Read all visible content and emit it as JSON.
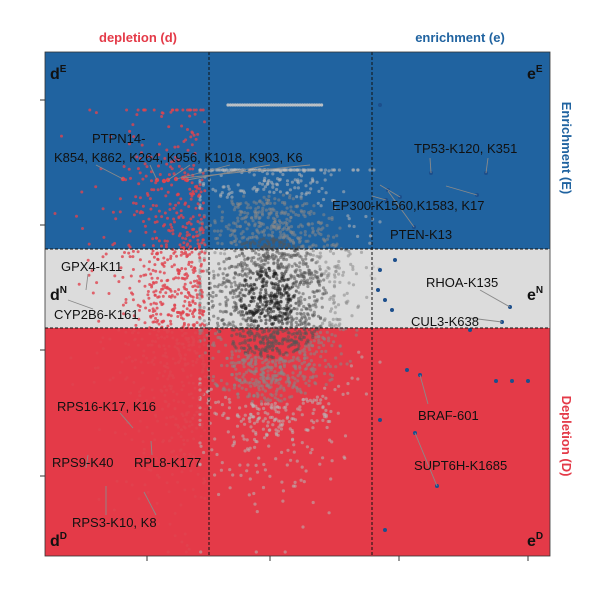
{
  "chart_data": {
    "type": "scatter",
    "title": "",
    "top_labels": {
      "left": "depletion (d)",
      "right": "enrichment (e)"
    },
    "side_labels": {
      "top": "Enrichment (E)",
      "bottom": "Depletion (D)"
    },
    "quadrant_labels": {
      "dE": {
        "main": "d",
        "sup": "E"
      },
      "eE": {
        "main": "e",
        "sup": "E"
      },
      "dN": {
        "main": "d",
        "sup": "N"
      },
      "eN": {
        "main": "e",
        "sup": "N"
      },
      "dD": {
        "main": "d",
        "sup": "D"
      },
      "eD": {
        "main": "e",
        "sup": "D"
      }
    },
    "regions": [
      {
        "name": "Enrichment (E)",
        "color": "#2063a0"
      },
      {
        "name": "Neutral (N)",
        "color": "#dcdcdc"
      },
      {
        "name": "Depletion (D)",
        "color": "#e43a48"
      }
    ],
    "colors": {
      "enrichment": "#1f5c9a",
      "neutral": "#dcdcdc",
      "depletion": "#e43a48",
      "depletion_points": "#e0444f",
      "enrichment_points": "#1c4f8c",
      "cloud": "#9a9a9a",
      "leader": "#8a8a8a"
    },
    "annotations": {
      "ptpn14_line1": "PTPN14-",
      "ptpn14_line2": "K854, K862, K264, K956, K1018, K903, K6",
      "tp53": "TP53-K120, K351",
      "ep300": "EP300-K1560,K1583, K17",
      "pten": "PTEN-K13",
      "gpx4": "GPX4-K11",
      "cyp2b6": "CYP2B6-K161",
      "rhoa": "RHOA-K135",
      "cul3": "CUL3-K638",
      "rps16": "RPS16-K17, K16",
      "rps9": "RPS9-K40",
      "rpl8": "RPL8-K177",
      "rps3": "RPS3-K10, K8",
      "braf": "BRAF-601",
      "supt6h": "SUPT6H-K1685"
    }
  }
}
